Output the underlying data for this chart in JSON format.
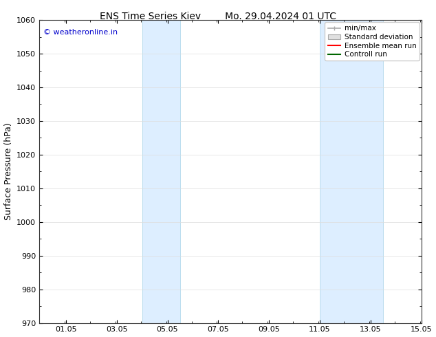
{
  "title_left": "ENS Time Series Kiev",
  "title_right": "Mo. 29.04.2024 01 UTC",
  "ylabel": "Surface Pressure (hPa)",
  "ylim": [
    970,
    1060
  ],
  "yticks": [
    970,
    980,
    990,
    1000,
    1010,
    1020,
    1030,
    1040,
    1050,
    1060
  ],
  "xlim": [
    0.0,
    15.05
  ],
  "xticks": [
    1.05,
    3.05,
    5.05,
    7.05,
    9.05,
    11.05,
    13.05,
    15.05
  ],
  "xticklabels": [
    "01.05",
    "03.05",
    "05.05",
    "07.05",
    "09.05",
    "11.05",
    "13.05",
    "15.05"
  ],
  "shaded_bands": [
    {
      "x_start": 4.05,
      "x_end": 5.55
    },
    {
      "x_start": 11.05,
      "x_end": 13.55
    }
  ],
  "band_color": "#ddeeff",
  "band_edge_color": "#bbddee",
  "copyright_text": "© weatheronline.in",
  "copyright_color": "#0000cc",
  "legend_entries": [
    {
      "label": "min/max"
    },
    {
      "label": "Standard deviation"
    },
    {
      "label": "Ensemble mean run"
    },
    {
      "label": "Controll run"
    }
  ],
  "legend_colors": [
    "#aaaaaa",
    "#cccccc",
    "#ff0000",
    "#006600"
  ],
  "background_color": "#ffffff",
  "grid_color": "#dddddd",
  "title_fontsize": 10,
  "label_fontsize": 9,
  "tick_fontsize": 8,
  "copyright_fontsize": 8,
  "legend_fontsize": 7.5
}
